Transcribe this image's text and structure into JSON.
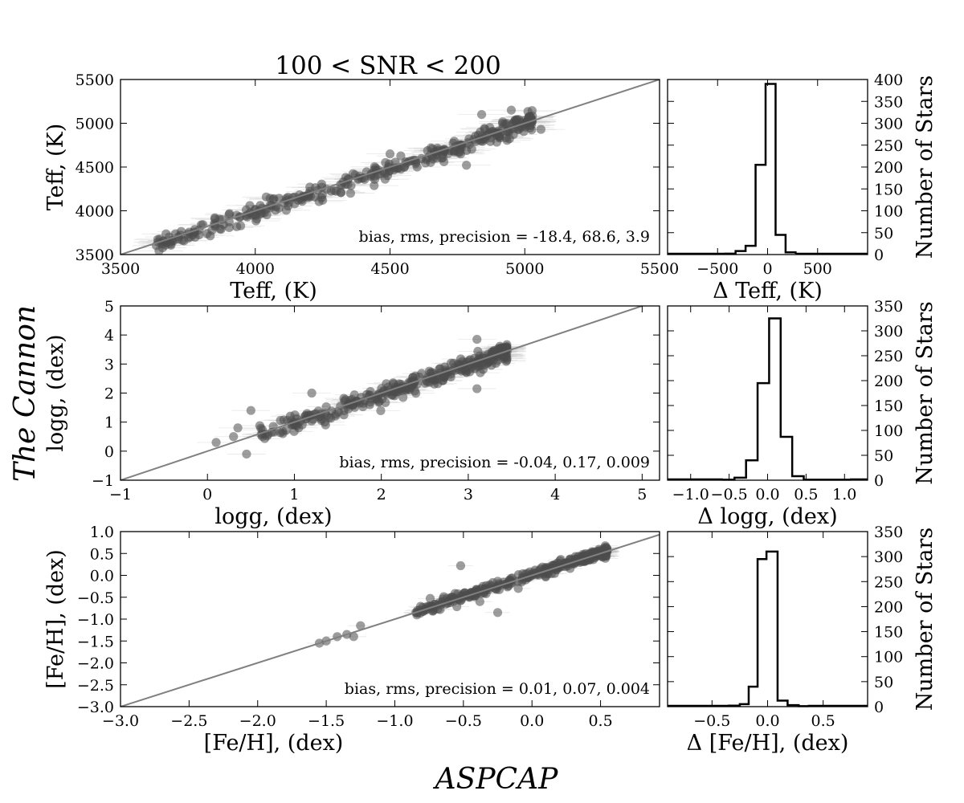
{
  "figure": {
    "title": "100 < SNR < 200",
    "supylabel": "The Cannon",
    "supxlabel": "ASPCAP",
    "colors": {
      "points": "#4d4d4d",
      "one_to_one_line": "#808080",
      "errorbars": "#bdbdbd",
      "histogram": "#000000"
    }
  },
  "chart_data": [
    {
      "type": "scatter",
      "parameter": "Teff",
      "xlabel": "Teff, (K)",
      "ylabel": "Teff, (K)",
      "xlim": [
        3500,
        5500
      ],
      "ylim": [
        3500,
        5500
      ],
      "xticks": [
        3500,
        4000,
        4500,
        5000,
        5500
      ],
      "yticks": [
        3500,
        4000,
        4500,
        5000,
        5500
      ],
      "tick_labels_x": [
        "3500",
        "4000",
        "4500",
        "5000",
        "5500"
      ],
      "tick_labels_y": [
        "3500",
        "4000",
        "4500",
        "5000",
        "5500"
      ],
      "one_to_one_line": true,
      "annotation": "bias, rms, precision = -18.4, 68.6, 3.9",
      "stats": {
        "bias": -18.4,
        "rms": 68.6,
        "precision": 3.9
      },
      "points_description": "dense cloud along one-to-one line",
      "x_span": [
        3630,
        5030
      ],
      "scatter_sigma": 68.6,
      "bias": -18.4,
      "outliers": [
        [
          3850,
          3920
        ],
        [
          3980,
          4060
        ],
        [
          4500,
          4650
        ],
        [
          4840,
          5100
        ],
        [
          4950,
          5150
        ],
        [
          5060,
          4930
        ],
        [
          4250,
          4120
        ],
        [
          4700,
          4560
        ]
      ]
    },
    {
      "type": "histogram",
      "parameter": "Delta Teff",
      "xlabel": "Δ Teff, (K)",
      "ylabel": "Number of Stars",
      "xlim": [
        -1000,
        1000
      ],
      "ylim": [
        0,
        400
      ],
      "xticks": [
        -500,
        0,
        500
      ],
      "tick_labels_x": [
        "−500",
        "0",
        "500"
      ],
      "yticks": [
        0,
        50,
        100,
        150,
        200,
        250,
        300,
        350,
        400
      ],
      "tick_labels_y": [
        "0",
        "50",
        "100",
        "150",
        "200",
        "250",
        "300",
        "350",
        "400"
      ],
      "bin_edges": [
        -420,
        -320,
        -220,
        -120,
        -20,
        80,
        180,
        280
      ],
      "counts": [
        2,
        8,
        20,
        205,
        390,
        45,
        5
      ]
    },
    {
      "type": "scatter",
      "parameter": "logg",
      "xlabel": "logg, (dex)",
      "ylabel": "logg, (dex)",
      "xlim": [
        -1,
        5.2
      ],
      "ylim": [
        -1,
        5
      ],
      "xticks": [
        -1,
        0,
        1,
        2,
        3,
        4,
        5
      ],
      "yticks": [
        -1,
        0,
        1,
        2,
        3,
        4,
        5
      ],
      "tick_labels_x": [
        "−1",
        "0",
        "1",
        "2",
        "3",
        "4",
        "5"
      ],
      "tick_labels_y": [
        "−1",
        "0",
        "1",
        "2",
        "3",
        "4",
        "5"
      ],
      "one_to_one_line": true,
      "annotation": "bias, rms, precision = -0.04, 0.17, 0.009",
      "stats": {
        "bias": -0.04,
        "rms": 0.17,
        "precision": 0.009
      },
      "points_description": "dense cloud along one-to-one line",
      "x_span": [
        0.6,
        3.45
      ],
      "scatter_sigma": 0.17,
      "bias": -0.04,
      "outliers": [
        [
          0.1,
          0.3
        ],
        [
          0.3,
          0.5
        ],
        [
          0.5,
          1.4
        ],
        [
          0.45,
          -0.1
        ],
        [
          1.2,
          2.0
        ],
        [
          3.1,
          3.85
        ],
        [
          3.1,
          2.15
        ],
        [
          0.35,
          0.8
        ],
        [
          2.25,
          1.85
        ],
        [
          1.35,
          1.0
        ]
      ]
    },
    {
      "type": "histogram",
      "parameter": "Delta logg",
      "xlabel": "Δ logg, (dex)",
      "ylabel": "Number of Stars",
      "xlim": [
        -1.3,
        1.3
      ],
      "ylim": [
        0,
        350
      ],
      "xticks": [
        -1.0,
        -0.5,
        0.0,
        0.5,
        1.0
      ],
      "tick_labels_x": [
        "−1.0",
        "−0.5",
        "0.0",
        "0.5",
        "1.0"
      ],
      "yticks": [
        0,
        50,
        100,
        150,
        200,
        250,
        300,
        350
      ],
      "tick_labels_y": [
        "0",
        "50",
        "100",
        "150",
        "200",
        "250",
        "300",
        "350"
      ],
      "bin_edges": [
        -0.58,
        -0.43,
        -0.28,
        -0.13,
        0.02,
        0.17,
        0.32,
        0.47,
        0.62,
        0.77,
        0.92,
        1.07
      ],
      "counts": [
        1,
        5,
        40,
        195,
        325,
        87,
        8,
        1,
        1,
        1,
        1
      ]
    },
    {
      "type": "scatter",
      "parameter": "[Fe/H]",
      "xlabel": "[Fe/H], (dex)",
      "ylabel": "[Fe/H], (dex)",
      "xlim": [
        -3.0,
        0.93
      ],
      "ylim": [
        -3.0,
        1.0
      ],
      "xticks": [
        -3.0,
        -2.5,
        -2.0,
        -1.5,
        -1.0,
        -0.5,
        0.0,
        0.5
      ],
      "yticks": [
        -3.0,
        -2.5,
        -2.0,
        -1.5,
        -1.0,
        -0.5,
        0.0,
        0.5,
        1.0
      ],
      "tick_labels_x": [
        "−3.0",
        "−2.5",
        "−2.0",
        "−1.5",
        "−1.0",
        "−0.5",
        "0.0",
        "0.5"
      ],
      "tick_labels_y": [
        "−3.0",
        "−2.5",
        "−2.0",
        "−1.5",
        "−1.0",
        "−0.5",
        "0.0",
        "0.5",
        "1.0"
      ],
      "one_to_one_line": true,
      "annotation": "bias, rms, precision = 0.01, 0.07, 0.004",
      "stats": {
        "bias": 0.01,
        "rms": 0.07,
        "precision": 0.004
      },
      "points_description": "dense cloud along one-to-one line",
      "x_span": [
        -0.85,
        0.55
      ],
      "scatter_sigma": 0.07,
      "bias": 0.01,
      "outliers": [
        [
          -1.55,
          -1.55
        ],
        [
          -1.5,
          -1.5
        ],
        [
          -1.42,
          -1.4
        ],
        [
          -1.35,
          -1.35
        ],
        [
          -1.3,
          -1.4
        ],
        [
          -1.25,
          -1.15
        ],
        [
          -0.52,
          0.22
        ],
        [
          -0.58,
          -0.5
        ],
        [
          -0.25,
          -0.85
        ],
        [
          -0.1,
          -0.3
        ],
        [
          -0.38,
          -0.6
        ]
      ]
    },
    {
      "type": "histogram",
      "parameter": "Delta [Fe/H]",
      "xlabel": "Δ [Fe/H], (dex)",
      "ylabel": "Number of Stars",
      "xlim": [
        -0.9,
        0.9
      ],
      "ylim": [
        0,
        350
      ],
      "xticks": [
        -0.5,
        0.0,
        0.5
      ],
      "tick_labels_x": [
        "−0.5",
        "0.0",
        "0.5"
      ],
      "yticks": [
        0,
        50,
        100,
        150,
        200,
        250,
        300,
        350
      ],
      "tick_labels_y": [
        "0",
        "50",
        "100",
        "150",
        "200",
        "250",
        "300",
        "350"
      ],
      "bin_edges": [
        -0.35,
        -0.25,
        -0.17,
        -0.09,
        -0.01,
        0.09,
        0.18,
        0.28,
        0.36
      ],
      "counts": [
        2,
        5,
        40,
        295,
        310,
        12,
        3,
        1
      ]
    }
  ]
}
